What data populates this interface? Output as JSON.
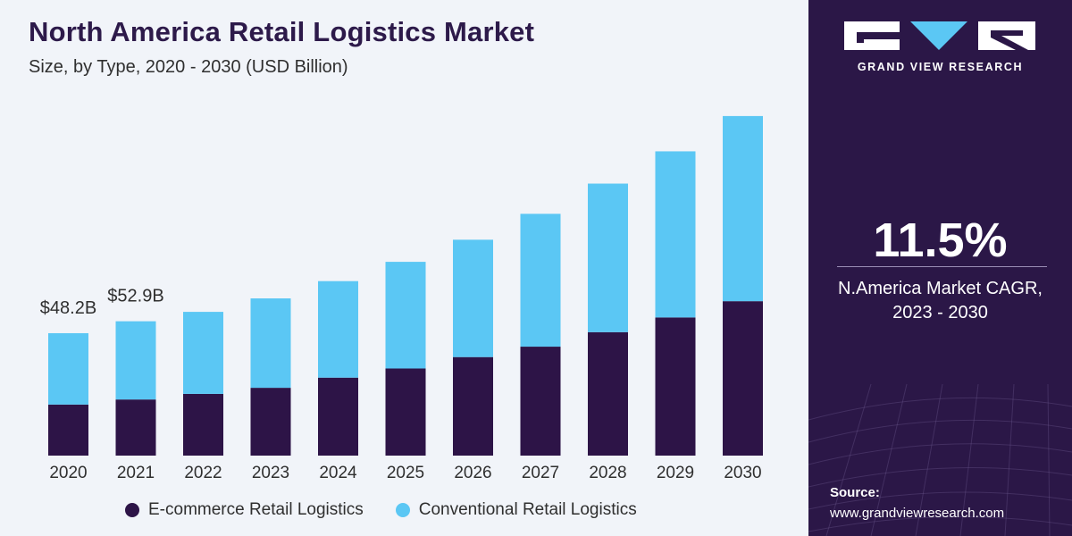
{
  "title": "North America Retail Logistics Market",
  "subtitle": "Size, by Type, 2020 - 2030 (USD Billion)",
  "colors": {
    "ecommerce": "#2d1447",
    "conventional": "#5bc7f4",
    "panel": "#2b1747",
    "background": "#f1f4f9"
  },
  "legend": {
    "ecommerce": "E-commerce Retail Logistics",
    "conventional": "Conventional Retail Logistics"
  },
  "sidebar": {
    "brand": "GRAND VIEW RESEARCH",
    "cagr_value": "11.5%",
    "cagr_label_line1": "N.America Market CAGR,",
    "cagr_label_line2": "2023 - 2030",
    "source_label": "Source:",
    "source_url": "www.grandviewresearch.com"
  },
  "chart_data": {
    "type": "bar",
    "stacked": true,
    "categories": [
      "2020",
      "2021",
      "2022",
      "2023",
      "2024",
      "2025",
      "2026",
      "2027",
      "2028",
      "2029",
      "2030"
    ],
    "series": [
      {
        "name": "E-commerce Retail Logistics",
        "values": [
          20.1,
          22.1,
          24.3,
          26.7,
          30.7,
          34.3,
          38.8,
          42.9,
          48.6,
          54.4,
          60.8
        ]
      },
      {
        "name": "Conventional Retail Logistics",
        "values": [
          28.1,
          30.8,
          32.3,
          35.2,
          38.0,
          42.0,
          46.2,
          52.3,
          58.5,
          65.4,
          72.9
        ]
      }
    ],
    "data_labels": [
      {
        "category": "2020",
        "text": "$48.2B"
      },
      {
        "category": "2021",
        "text": "$52.9B"
      }
    ],
    "ylim": [
      0,
      140
    ],
    "grid": false,
    "legend_position": "bottom"
  }
}
